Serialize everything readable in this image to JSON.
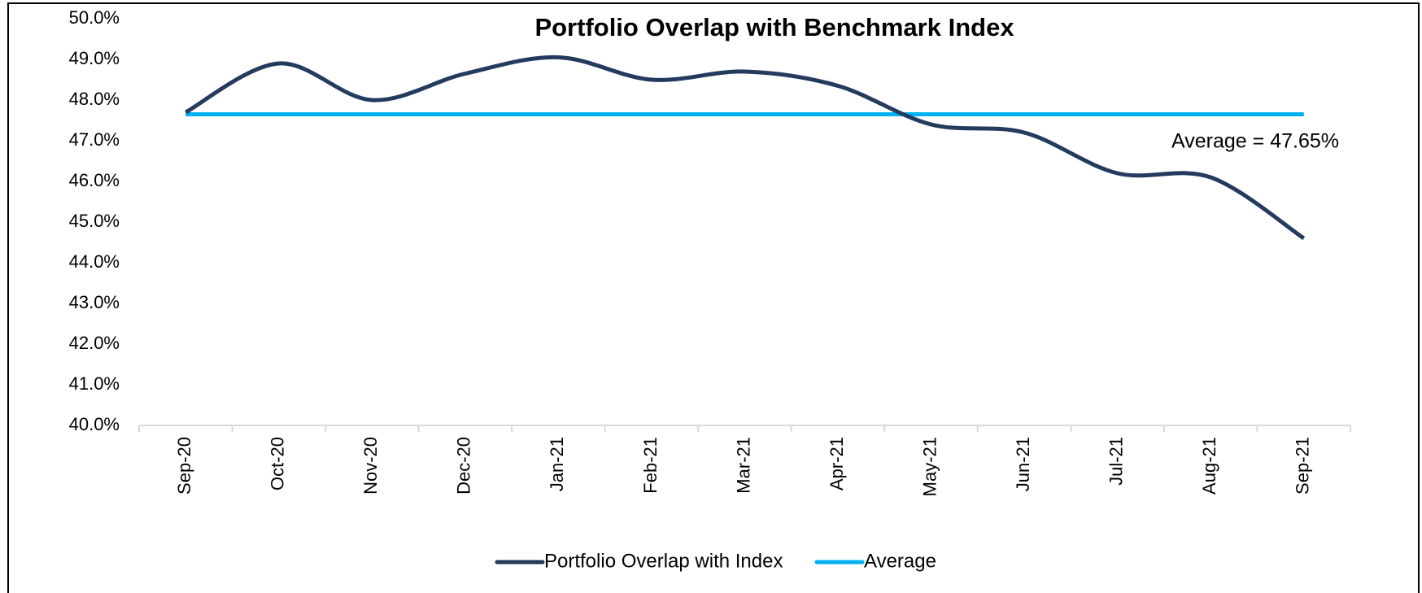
{
  "chart_data": {
    "type": "line",
    "title": "Portfolio Overlap with Benchmark Index",
    "annotation": "Average = 47.65%",
    "categories": [
      "Sep-20",
      "Oct-20",
      "Nov-20",
      "Dec-20",
      "Jan-21",
      "Feb-21",
      "Mar-21",
      "Apr-21",
      "May-21",
      "Jun-21",
      "Jul-21",
      "Aug-21",
      "Sep-21"
    ],
    "series": [
      {
        "name": "Portfolio Overlap with Index",
        "color": "#243a5e",
        "values": [
          47.7,
          48.9,
          48.0,
          48.65,
          49.05,
          48.5,
          48.7,
          48.35,
          47.4,
          47.2,
          46.2,
          46.1,
          44.6
        ]
      },
      {
        "name": "Average",
        "color": "#00b0f0",
        "values": [
          47.65,
          47.65,
          47.65,
          47.65,
          47.65,
          47.65,
          47.65,
          47.65,
          47.65,
          47.65,
          47.65,
          47.65,
          47.65
        ]
      }
    ],
    "ylim": [
      40,
      50
    ],
    "yticks": [
      {
        "value": 40,
        "label": "40.0%"
      },
      {
        "value": 41,
        "label": "41.0%"
      },
      {
        "value": 42,
        "label": "42.0%"
      },
      {
        "value": 43,
        "label": "43.0%"
      },
      {
        "value": 44,
        "label": "44.0%"
      },
      {
        "value": 45,
        "label": "45.0%"
      },
      {
        "value": 46,
        "label": "46.0%"
      },
      {
        "value": 47,
        "label": "47.0%"
      },
      {
        "value": 48,
        "label": "48.0%"
      },
      {
        "value": 49,
        "label": "49.0%"
      },
      {
        "value": 50,
        "label": "50.0%"
      }
    ],
    "grid": false,
    "smooth": true,
    "legend": "bottom"
  }
}
